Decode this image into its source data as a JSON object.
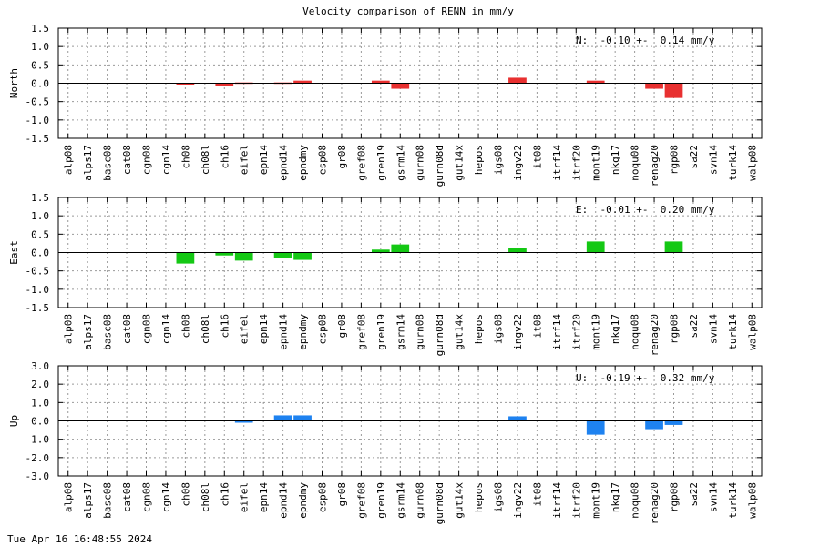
{
  "chart_data": {
    "type": "bar",
    "title": "Velocity comparison of RENN in mm/y",
    "categories": [
      "alp08",
      "alps17",
      "basc08",
      "cat08",
      "cgn08",
      "cgn14",
      "ch08",
      "ch08l",
      "ch16",
      "eifel",
      "epn14",
      "epnd14",
      "epndmy",
      "esp08",
      "gr08",
      "gref08",
      "gren19",
      "gsrm14",
      "gurn08",
      "gurn08d",
      "gut14x",
      "hepos",
      "igs08",
      "ingv22",
      "it08",
      "itrf14",
      "itrf20",
      "mont19",
      "nkg17",
      "noqu08",
      "renag20",
      "rgp08",
      "sa22",
      "svn14",
      "turk14",
      "walp08"
    ],
    "panels": [
      {
        "ylabel": "North",
        "color": "#e83030",
        "ylim": [
          -1.5,
          1.5
        ],
        "yticks": [
          "1.5",
          "1.0",
          "0.5",
          "0.0",
          "-0.5",
          "-1.0",
          "-1.5"
        ],
        "grid": true,
        "summary": "N:  -0.10 +-  0.14 mm/y",
        "values": [
          null,
          null,
          null,
          null,
          null,
          null,
          -0.03,
          null,
          -0.07,
          0.02,
          null,
          0.02,
          0.07,
          null,
          null,
          null,
          0.07,
          -0.15,
          null,
          null,
          null,
          null,
          null,
          0.15,
          null,
          null,
          null,
          0.07,
          null,
          null,
          -0.15,
          -0.4,
          null,
          null,
          null,
          null
        ]
      },
      {
        "ylabel": "East",
        "color": "#14c814",
        "ylim": [
          -1.5,
          1.5
        ],
        "yticks": [
          "1.5",
          "1.0",
          "0.5",
          "0.0",
          "-0.5",
          "-1.0",
          "-1.5"
        ],
        "grid": true,
        "summary": "E:  -0.01 +-  0.20 mm/y",
        "values": [
          null,
          null,
          null,
          null,
          null,
          null,
          -0.3,
          null,
          -0.08,
          -0.22,
          null,
          -0.15,
          -0.2,
          null,
          null,
          null,
          0.08,
          0.22,
          null,
          null,
          null,
          null,
          null,
          0.12,
          null,
          null,
          null,
          0.3,
          null,
          null,
          null,
          0.3,
          null,
          null,
          null,
          null
        ]
      },
      {
        "ylabel": "Up",
        "color": "#1e82f0",
        "ylim": [
          -3.0,
          3.0
        ],
        "yticks": [
          "3.0",
          "2.0",
          "1.0",
          "0.0",
          "-1.0",
          "-2.0",
          "-3.0"
        ],
        "grid": true,
        "summary": "U:  -0.19 +-  0.32 mm/y",
        "values": [
          null,
          null,
          null,
          null,
          null,
          null,
          0.05,
          null,
          0.05,
          -0.1,
          null,
          0.3,
          0.3,
          null,
          null,
          null,
          0.05,
          null,
          null,
          null,
          null,
          null,
          null,
          0.25,
          null,
          null,
          null,
          -0.75,
          null,
          null,
          -0.45,
          -0.22,
          null,
          null,
          null,
          null
        ]
      }
    ]
  },
  "footer": {
    "timestamp": "Tue Apr 16 16:48:55 2024"
  }
}
